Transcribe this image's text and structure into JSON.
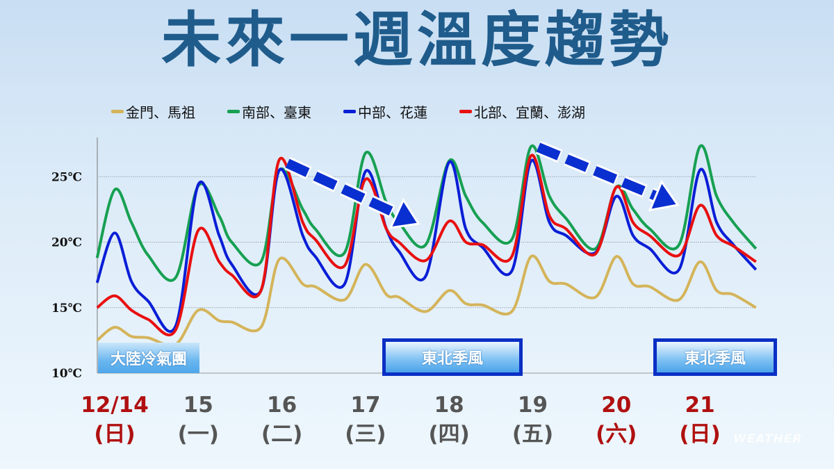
{
  "title": "未來一週溫度趨勢",
  "watermark": "WEATHER",
  "annotations": {
    "cold_air": "大陸冷氣團",
    "ne_monsoon_1": "東北季風",
    "ne_monsoon_2": "東北季風"
  },
  "days": [
    {
      "date": "12/14",
      "weekday": "(日)",
      "color": "#b01010"
    },
    {
      "date": "15",
      "weekday": "(一)",
      "color": "#555555"
    },
    {
      "date": "16",
      "weekday": "(二)",
      "color": "#555555"
    },
    {
      "date": "17",
      "weekday": "(三)",
      "color": "#555555"
    },
    {
      "date": "18",
      "weekday": "(四)",
      "color": "#555555"
    },
    {
      "date": "19",
      "weekday": "(五)",
      "color": "#555555"
    },
    {
      "date": "20",
      "weekday": "(六)",
      "color": "#b01010"
    },
    {
      "date": "21",
      "weekday": "(日)",
      "color": "#b01010"
    }
  ],
  "chart_data": {
    "type": "line",
    "title": "未來一週溫度趨勢",
    "xlabel": "",
    "ylabel": "",
    "x_unit": "day of December",
    "ylim": [
      10,
      27.5
    ],
    "yticks": [
      {
        "v": 10,
        "label": "10℃"
      },
      {
        "v": 15,
        "label": "15℃"
      },
      {
        "v": 20,
        "label": "20℃"
      },
      {
        "v": 25,
        "label": "25℃"
      }
    ],
    "grid": true,
    "legend": "top",
    "x": [
      13.79,
      14.0,
      14.2,
      14.4,
      14.73,
      15.0,
      15.25,
      15.4,
      15.75,
      15.97,
      16.25,
      16.4,
      16.75,
      17.0,
      17.25,
      17.4,
      17.72,
      18.0,
      18.2,
      18.4,
      18.75,
      18.98,
      19.2,
      19.4,
      19.75,
      20.0,
      20.2,
      20.4,
      20.75,
      21.0,
      21.2,
      21.4,
      21.67
    ],
    "series": [
      {
        "name": "金門、馬祖",
        "color": "#d4b45a",
        "values": [
          12.5,
          13.5,
          12.8,
          12.7,
          12.2,
          14.8,
          14.0,
          13.9,
          13.5,
          18.7,
          16.8,
          16.6,
          15.6,
          18.3,
          16.0,
          15.8,
          14.7,
          16.3,
          15.3,
          15.2,
          14.7,
          18.9,
          17.0,
          16.8,
          15.8,
          18.9,
          16.8,
          16.6,
          15.6,
          18.5,
          16.3,
          16.0,
          15.0
        ]
      },
      {
        "name": "南部、臺東",
        "color": "#17a052",
        "values": [
          18.8,
          24.0,
          21.5,
          19.0,
          17.3,
          24.3,
          22.0,
          20.0,
          18.5,
          25.5,
          22.5,
          21.0,
          19.2,
          26.8,
          23.0,
          21.5,
          19.8,
          26.2,
          23.5,
          21.5,
          20.2,
          27.3,
          23.5,
          21.8,
          19.5,
          24.2,
          22.5,
          21.0,
          19.8,
          27.3,
          23.5,
          21.5,
          19.5
        ]
      },
      {
        "name": "中部、花蓮",
        "color": "#0a1ed6",
        "values": [
          16.9,
          20.7,
          17.0,
          15.5,
          13.6,
          24.4,
          20.5,
          18.3,
          16.3,
          25.5,
          20.5,
          18.9,
          16.8,
          25.4,
          21.0,
          19.3,
          17.4,
          26.1,
          21.0,
          19.6,
          17.8,
          26.2,
          21.5,
          20.5,
          19.2,
          23.5,
          20.5,
          19.5,
          17.9,
          25.5,
          21.5,
          19.8,
          17.9
        ]
      },
      {
        "name": "北部、宜蘭、澎湖",
        "color": "#e81010",
        "values": [
          15.0,
          15.9,
          14.8,
          14.1,
          13.3,
          20.9,
          18.5,
          17.5,
          16.3,
          26.3,
          21.5,
          20.2,
          18.2,
          24.8,
          21.0,
          20.0,
          18.6,
          21.6,
          20.0,
          19.8,
          18.9,
          26.6,
          22.0,
          21.0,
          19.1,
          24.2,
          21.5,
          20.5,
          19.0,
          22.8,
          20.5,
          19.7,
          18.5
        ]
      }
    ],
    "trend_arrows": [
      {
        "from_day": 16.0,
        "to_day": 17.8
      },
      {
        "from_day": 19.0,
        "to_day": 20.9
      }
    ]
  }
}
